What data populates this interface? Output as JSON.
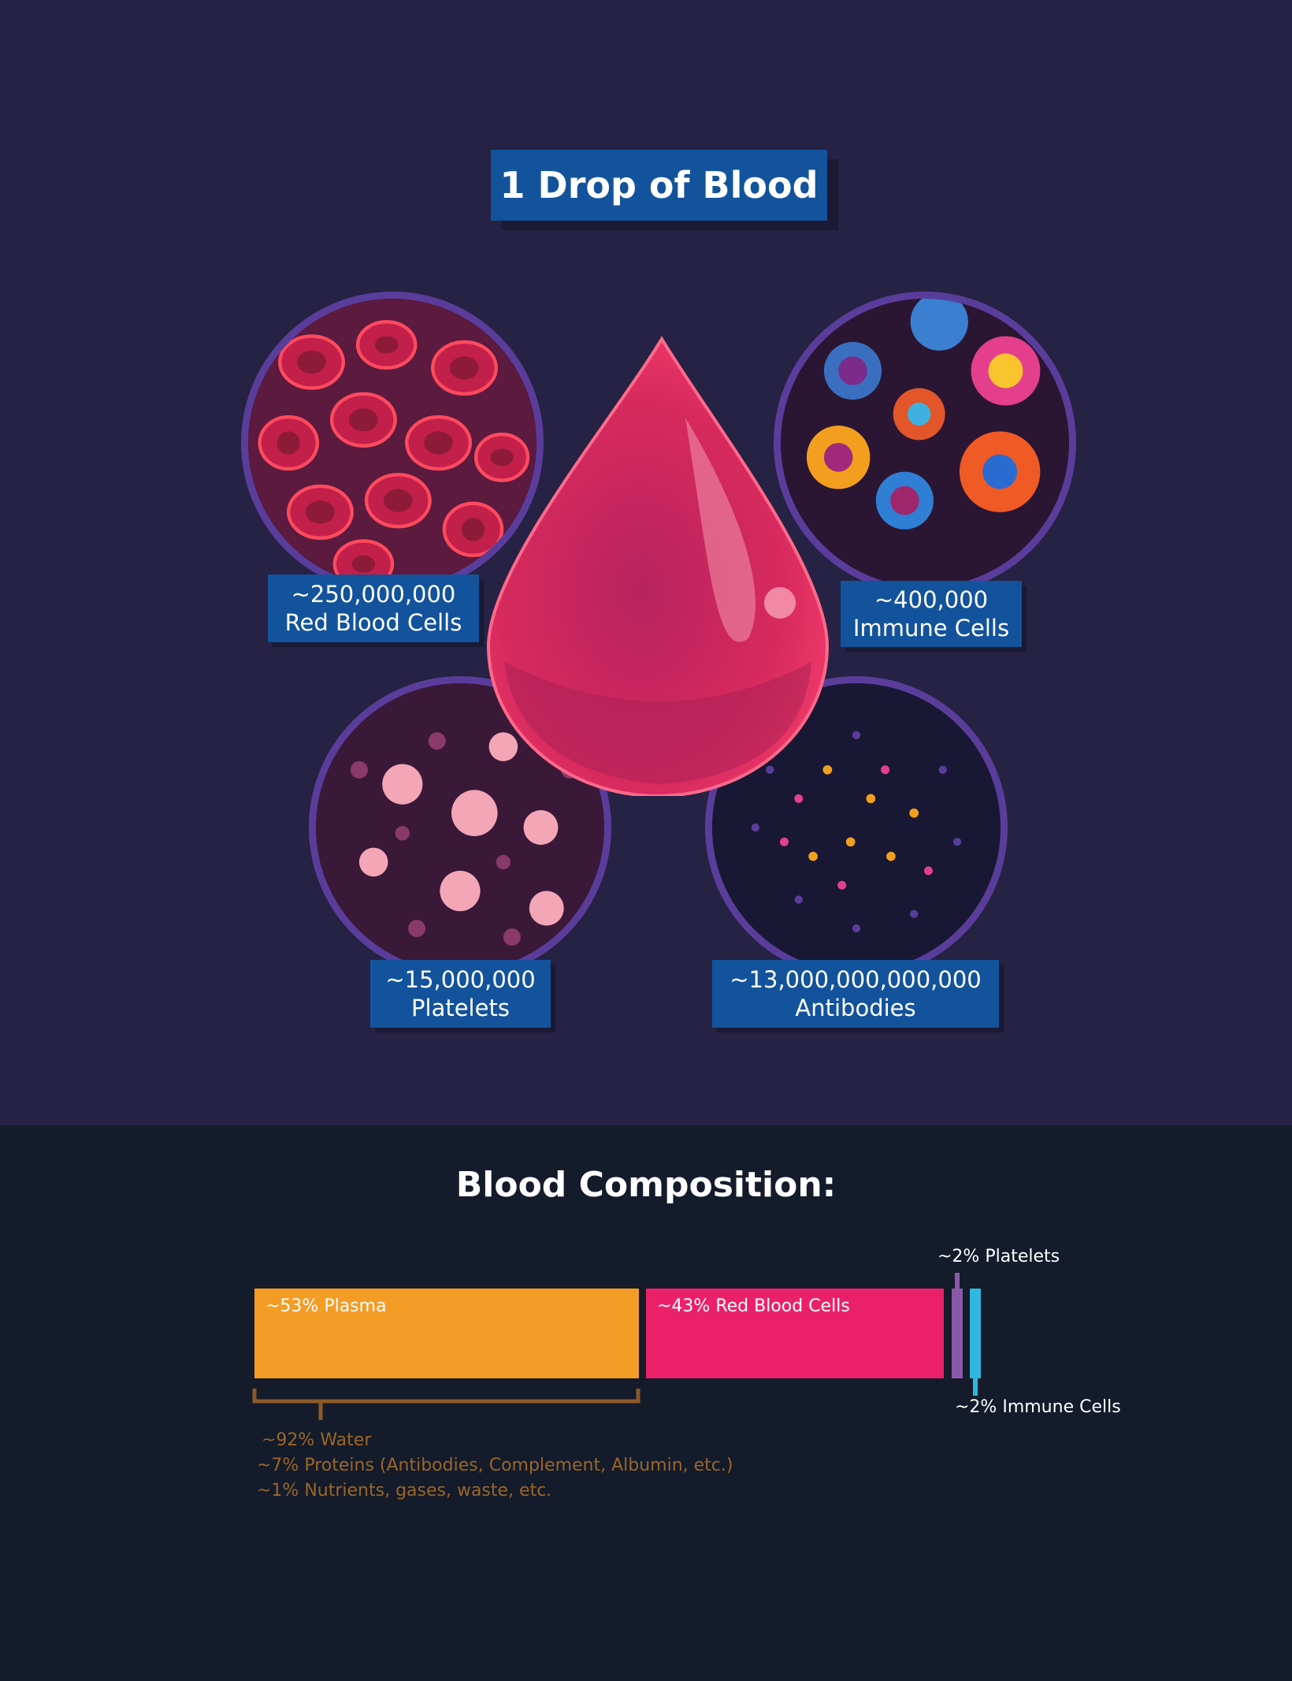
{
  "title": "1 Drop of Blood",
  "cells": [
    {
      "count": "~250,000,000",
      "name": "Red Blood Cells"
    },
    {
      "count": "~400,000",
      "name": "Immune Cells"
    },
    {
      "count": "~15,000,000",
      "name": "Platelets"
    },
    {
      "count": "~13,000,000,000,000",
      "name": "Antibodies"
    }
  ],
  "composition": {
    "title": "Blood Composition:",
    "segments": [
      {
        "label": "~53% Plasma",
        "percent": 53,
        "color": "#f39c26"
      },
      {
        "label": "~43% Red Blood Cells",
        "percent": 43,
        "color": "#ea2169"
      },
      {
        "label": "~2% Platelets",
        "percent": 2,
        "color": "#8a58a8"
      },
      {
        "label": "~2% Immune Cells",
        "percent": 2,
        "color": "#2fb7e0"
      }
    ],
    "plasma_breakdown": [
      "~92% Water",
      "~7% Proteins (Antibodies, Complement, Albumin, etc.)",
      "~1% Nutrients, gases, waste, etc."
    ]
  },
  "colors": {
    "background_top": "#252244",
    "background_bottom": "#141b2a",
    "label_box": "#13539b",
    "drop": "#e0265f"
  }
}
